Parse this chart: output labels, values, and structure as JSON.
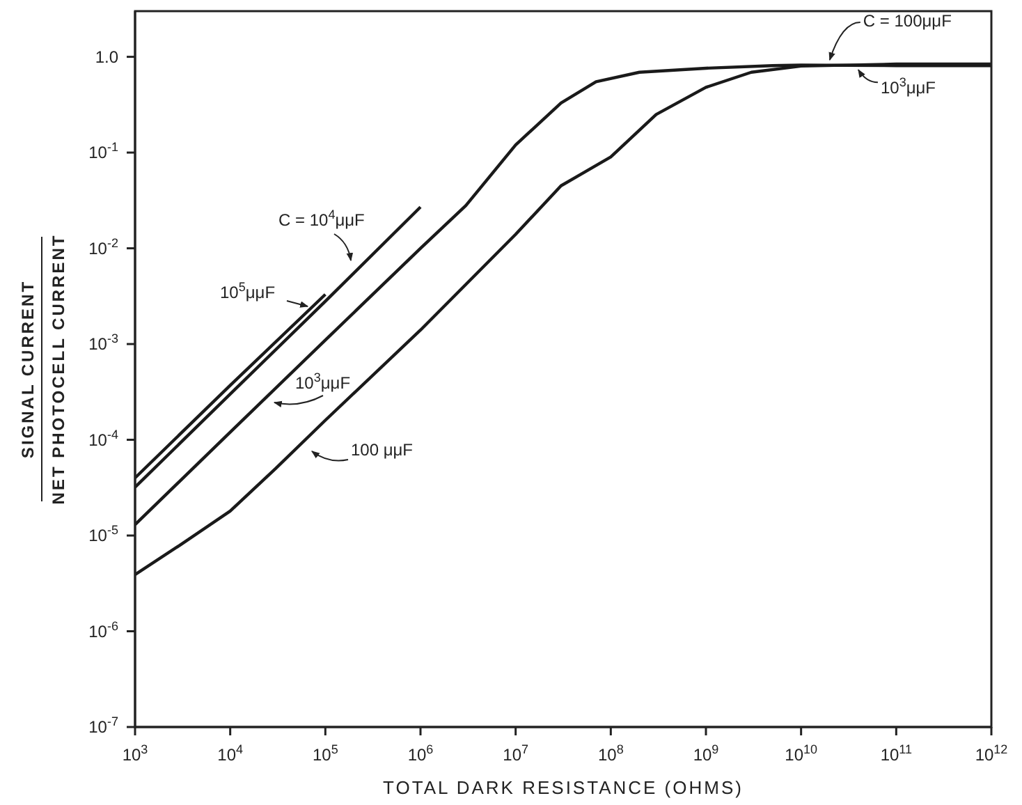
{
  "chart_data": {
    "type": "line",
    "xlabel": "TOTAL DARK RESISTANCE (OHMS)",
    "ylabel": "SIGNAL CURRENT\nNET PHOTOCELL CURRENT",
    "log": "xy",
    "marker": "none",
    "line_style": "solid",
    "xlim": [
      1000,
      1000000000000
    ],
    "ylim": [
      1e-07,
      3
    ],
    "xticks": [
      {
        "value": 1000,
        "label": "10$^{3}$"
      },
      {
        "value": 10000,
        "label": "10$^{4}$"
      },
      {
        "value": 100000,
        "label": "10$^{5}$"
      },
      {
        "value": 1000000,
        "label": "10$^{6}$"
      },
      {
        "value": 10000000,
        "label": "10$^{7}$"
      },
      {
        "value": 100000000,
        "label": "10$^{8}$"
      },
      {
        "value": 1000000000,
        "label": "10$^{9}$"
      },
      {
        "value": 10000000000,
        "label": "10$^{10}$"
      },
      {
        "value": 100000000000,
        "label": "10$^{11}$"
      },
      {
        "value": 1000000000000,
        "label": "10$^{12}$"
      }
    ],
    "yticks": [
      {
        "value": 1,
        "label": "1.0"
      },
      {
        "value": 0.1,
        "label": "10$^{-1}$"
      },
      {
        "value": 0.01,
        "label": "10$^{-2}$"
      },
      {
        "value": 0.001,
        "label": "10$^{-3}$"
      },
      {
        "value": 0.0001,
        "label": "10$^{-4}$"
      },
      {
        "value": 1e-05,
        "label": "10$^{-5}$"
      },
      {
        "value": 1e-06,
        "label": "10$^{-6}$"
      },
      {
        "value": 1e-07,
        "label": "10$^{-7}$"
      }
    ],
    "series": [
      {
        "name": "C = 10$^{4}$μμF",
        "color": "#1a1a1a",
        "x": [
          1000,
          10000,
          100000,
          1000000
        ],
        "values": [
          3.2e-05,
          0.0003,
          0.0028,
          0.027
        ]
      },
      {
        "name": "10$^{5}$μμF",
        "color": "#1a1a1a",
        "x": [
          1000,
          10000,
          100000
        ],
        "values": [
          4e-05,
          0.00037,
          0.0033
        ]
      },
      {
        "name": "10$^{3}$μμF",
        "color": "#1a1a1a",
        "x": [
          1000,
          10000,
          100000,
          1000000,
          3000000,
          10000000,
          30000000,
          70000000,
          200000000,
          1000000000,
          5000000000,
          10000000000,
          100000000000,
          1000000000000
        ],
        "values": [
          1.3e-05,
          0.00012,
          0.0011,
          0.01,
          0.028,
          0.12,
          0.33,
          0.55,
          0.69,
          0.76,
          0.81,
          0.82,
          0.81,
          0.81
        ]
      },
      {
        "name": "100 μμF",
        "color": "#1a1a1a",
        "x": [
          1000,
          3000,
          10000,
          30000,
          100000,
          1000000,
          10000000,
          30000000,
          100000000,
          300000000,
          1000000000,
          3000000000,
          10000000000,
          100000000000,
          1000000000000
        ],
        "values": [
          3.9e-06,
          8e-06,
          1.8e-05,
          5e-05,
          0.00016,
          0.0014,
          0.014,
          0.045,
          0.09,
          0.25,
          0.48,
          0.69,
          0.8,
          0.84,
          0.84
        ]
      }
    ],
    "annotations": [
      {
        "text": "C = 100μμF",
        "x": 20000000000,
        "y": 0.84
      },
      {
        "text": "10$^{3}$μμF",
        "x": 40000000000,
        "y": 0.81
      }
    ]
  }
}
